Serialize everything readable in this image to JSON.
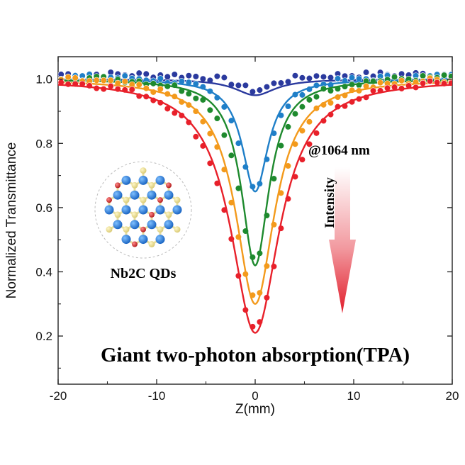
{
  "chart_data": {
    "type": "scatter",
    "title": "",
    "xlabel": "Z(mm)",
    "ylabel": "Normalized Transmittance",
    "xlim": [
      -20,
      20
    ],
    "ylim": [
      0.05,
      1.07
    ],
    "xticks": [
      "-20",
      "-10",
      "0",
      "10",
      "20"
    ],
    "xtick_values": [
      -20,
      -10,
      0,
      10,
      20
    ],
    "yticks": [
      "0.2",
      "0.4",
      "0.6",
      "0.8",
      "1.0"
    ],
    "ytick_values": [
      0.2,
      0.4,
      0.6,
      0.8,
      1.0
    ],
    "series": [
      {
        "name": "navy",
        "color": "#2b3a9e",
        "min_T": 0.95,
        "width_mm": 2.5,
        "fit_width_mm": 2.5
      },
      {
        "name": "blue",
        "color": "#1f7fc8",
        "min_T": 0.65,
        "width_mm": 2.0,
        "fit_width_mm": 1.6
      },
      {
        "name": "green",
        "color": "#1e8a2e",
        "min_T": 0.42,
        "width_mm": 2.1,
        "fit_width_mm": 1.7
      },
      {
        "name": "orange",
        "color": "#f39a1c",
        "min_T": 0.3,
        "width_mm": 2.7,
        "fit_width_mm": 2.4
      },
      {
        "name": "red",
        "color": "#e8202a",
        "min_T": 0.21,
        "width_mm": 3.3,
        "fit_width_mm": 3.0
      }
    ],
    "annotations": {
      "wavelength": "@1064 nm",
      "intensity_label": "Intensity",
      "material_label": "Nb2C QDs",
      "headline": "Giant two-photon absorption(TPA)"
    }
  }
}
